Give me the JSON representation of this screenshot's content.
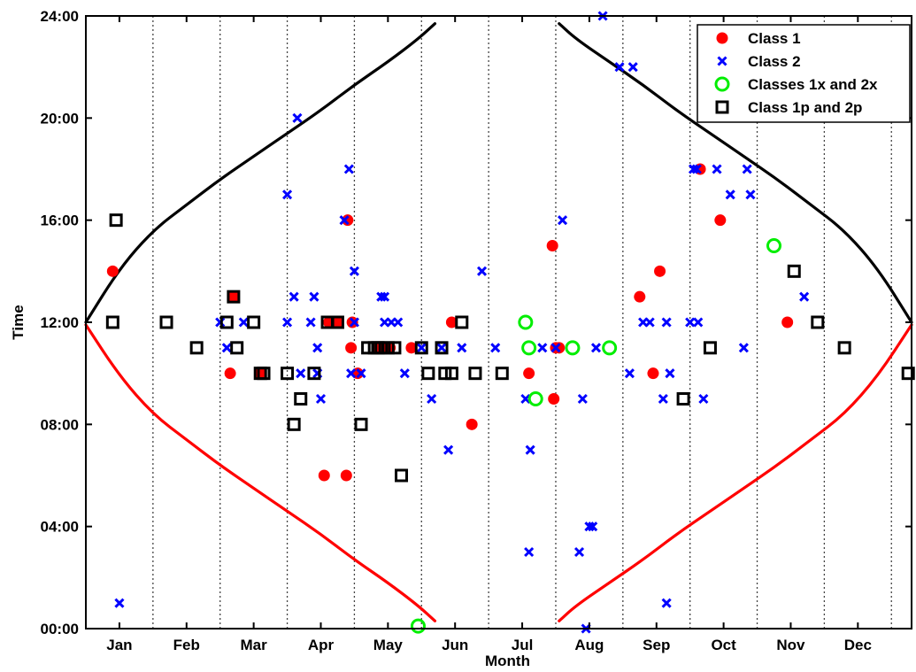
{
  "chart_data": {
    "type": "scatter",
    "xlabel": "Month",
    "ylabel": "Time",
    "xlim": [
      0,
      12.3
    ],
    "ylim": [
      0,
      24
    ],
    "month_ticks": [
      {
        "label": "Jan",
        "x": 0.5
      },
      {
        "label": "Feb",
        "x": 1.5
      },
      {
        "label": "Mar",
        "x": 2.5
      },
      {
        "label": "Apr",
        "x": 3.5
      },
      {
        "label": "May",
        "x": 4.5
      },
      {
        "label": "Jun",
        "x": 5.5
      },
      {
        "label": "Jul",
        "x": 6.5
      },
      {
        "label": "Aug",
        "x": 7.5
      },
      {
        "label": "Sep",
        "x": 8.5
      },
      {
        "label": "Oct",
        "x": 9.5
      },
      {
        "label": "Nov",
        "x": 10.5
      },
      {
        "label": "Dec",
        "x": 11.5
      }
    ],
    "y_ticks": [
      {
        "label": "00:00",
        "y": 0
      },
      {
        "label": "04:00",
        "y": 4
      },
      {
        "label": "08:00",
        "y": 8
      },
      {
        "label": "12:00",
        "y": 12
      },
      {
        "label": "16:00",
        "y": 16
      },
      {
        "label": "20:00",
        "y": 20
      },
      {
        "label": "24:00",
        "y": 24
      }
    ],
    "month_boundaries": [
      1,
      2,
      3,
      4,
      5,
      6,
      7,
      8,
      9,
      10,
      11,
      12
    ],
    "boundary_style": "dotted",
    "legend_position": "top-right",
    "series": [
      {
        "name": "Class 1",
        "marker": "dot",
        "color": "#ff0000",
        "points": [
          [
            0.4,
            14
          ],
          [
            2.2,
            13
          ],
          [
            2.15,
            10
          ],
          [
            2.6,
            10
          ],
          [
            3.55,
            6
          ],
          [
            3.62,
            12
          ],
          [
            3.75,
            12
          ],
          [
            4.05,
            10
          ],
          [
            3.9,
            16
          ],
          [
            3.95,
            11
          ],
          [
            3.97,
            12
          ],
          [
            3.88,
            6
          ],
          [
            4.35,
            11
          ],
          [
            4.42,
            11
          ],
          [
            4.53,
            11
          ],
          [
            4.85,
            11
          ],
          [
            5.45,
            12
          ],
          [
            5.75,
            8
          ],
          [
            6.6,
            10
          ],
          [
            6.95,
            15
          ],
          [
            7.05,
            11
          ],
          [
            6.97,
            9
          ],
          [
            7.0,
            11
          ],
          [
            8.25,
            13
          ],
          [
            8.45,
            10
          ],
          [
            8.55,
            14
          ],
          [
            9.15,
            18
          ],
          [
            9.45,
            16
          ],
          [
            10.45,
            12
          ]
        ]
      },
      {
        "name": "Class 2",
        "marker": "x",
        "color": "#0000ff",
        "points": [
          [
            0.5,
            1
          ],
          [
            2.0,
            12
          ],
          [
            2.1,
            11
          ],
          [
            2.35,
            12
          ],
          [
            3.0,
            17
          ],
          [
            3.1,
            13
          ],
          [
            3.0,
            12
          ],
          [
            3.15,
            20
          ],
          [
            3.2,
            10
          ],
          [
            3.4,
            13
          ],
          [
            3.35,
            12
          ],
          [
            3.5,
            9
          ],
          [
            3.45,
            11
          ],
          [
            3.45,
            10
          ],
          [
            3.85,
            16
          ],
          [
            3.92,
            18
          ],
          [
            4.0,
            14
          ],
          [
            4.0,
            12
          ],
          [
            3.95,
            10
          ],
          [
            4.1,
            10
          ],
          [
            4.4,
            13
          ],
          [
            4.45,
            13
          ],
          [
            4.45,
            12
          ],
          [
            4.55,
            12
          ],
          [
            4.65,
            12
          ],
          [
            4.75,
            10
          ],
          [
            5.0,
            11
          ],
          [
            5.15,
            9
          ],
          [
            5.3,
            11
          ],
          [
            5.4,
            7
          ],
          [
            5.6,
            11
          ],
          [
            5.9,
            14
          ],
          [
            6.1,
            11
          ],
          [
            6.55,
            9
          ],
          [
            6.6,
            3
          ],
          [
            6.62,
            7
          ],
          [
            6.8,
            11
          ],
          [
            7.0,
            11
          ],
          [
            7.1,
            16
          ],
          [
            7.4,
            9
          ],
          [
            7.35,
            3
          ],
          [
            7.45,
            0
          ],
          [
            7.5,
            4
          ],
          [
            7.55,
            4
          ],
          [
            7.6,
            11
          ],
          [
            7.7,
            24
          ],
          [
            7.95,
            22
          ],
          [
            8.15,
            22
          ],
          [
            8.1,
            10
          ],
          [
            8.3,
            12
          ],
          [
            8.4,
            12
          ],
          [
            8.6,
            9
          ],
          [
            8.65,
            12
          ],
          [
            8.65,
            1
          ],
          [
            8.7,
            10
          ],
          [
            9.0,
            12
          ],
          [
            9.05,
            18
          ],
          [
            9.1,
            18
          ],
          [
            9.12,
            12
          ],
          [
            9.2,
            9
          ],
          [
            9.4,
            18
          ],
          [
            9.6,
            17
          ],
          [
            9.8,
            11
          ],
          [
            9.85,
            18
          ],
          [
            9.9,
            17
          ],
          [
            10.7,
            13
          ]
        ]
      },
      {
        "name": "Classes 1x and 2x",
        "marker": "ring",
        "color": "#00ee00",
        "points": [
          [
            4.95,
            0.1
          ],
          [
            6.55,
            12
          ],
          [
            6.6,
            11
          ],
          [
            6.7,
            9
          ],
          [
            7.25,
            11
          ],
          [
            7.8,
            11
          ],
          [
            10.25,
            15
          ]
        ]
      },
      {
        "name": "Class 1p and 2p",
        "marker": "square",
        "color": "#000000",
        "points": [
          [
            0.45,
            16
          ],
          [
            0.4,
            12
          ],
          [
            1.2,
            12
          ],
          [
            1.65,
            11
          ],
          [
            2.1,
            12
          ],
          [
            2.2,
            13
          ],
          [
            2.25,
            11
          ],
          [
            2.5,
            12
          ],
          [
            2.6,
            10
          ],
          [
            2.65,
            10
          ],
          [
            3.0,
            10
          ],
          [
            3.1,
            8
          ],
          [
            3.2,
            9
          ],
          [
            3.4,
            10
          ],
          [
            3.6,
            12
          ],
          [
            3.75,
            12
          ],
          [
            4.1,
            8
          ],
          [
            4.2,
            11
          ],
          [
            4.3,
            11
          ],
          [
            4.35,
            11
          ],
          [
            4.4,
            11
          ],
          [
            4.5,
            11
          ],
          [
            4.6,
            11
          ],
          [
            4.7,
            6
          ],
          [
            5.0,
            11
          ],
          [
            5.1,
            10
          ],
          [
            5.3,
            11
          ],
          [
            5.35,
            10
          ],
          [
            5.45,
            10
          ],
          [
            5.6,
            12
          ],
          [
            5.8,
            10
          ],
          [
            6.2,
            10
          ],
          [
            8.9,
            9
          ],
          [
            9.3,
            11
          ],
          [
            10.55,
            14
          ],
          [
            10.9,
            12
          ],
          [
            11.3,
            11
          ],
          [
            12.25,
            10
          ]
        ]
      }
    ],
    "curves": [
      {
        "name": "upper-left-black",
        "color": "#000000",
        "points": [
          [
            0.0,
            12.0
          ],
          [
            0.5,
            14.1
          ],
          [
            1.0,
            15.6
          ],
          [
            1.5,
            16.6
          ],
          [
            2.0,
            17.6
          ],
          [
            2.5,
            18.5
          ],
          [
            3.0,
            19.4
          ],
          [
            3.5,
            20.3
          ],
          [
            4.0,
            21.3
          ],
          [
            4.5,
            22.2
          ],
          [
            4.95,
            23.1
          ],
          [
            5.2,
            23.7
          ]
        ]
      },
      {
        "name": "upper-right-black",
        "color": "#000000",
        "points": [
          [
            7.05,
            23.7
          ],
          [
            7.3,
            23.1
          ],
          [
            7.8,
            22.2
          ],
          [
            8.3,
            21.3
          ],
          [
            8.8,
            20.3
          ],
          [
            9.3,
            19.4
          ],
          [
            9.8,
            18.5
          ],
          [
            10.3,
            17.6
          ],
          [
            10.8,
            16.6
          ],
          [
            11.3,
            15.6
          ],
          [
            11.8,
            14.1
          ],
          [
            12.3,
            12.0
          ]
        ]
      },
      {
        "name": "lower-left-red",
        "color": "#ff0000",
        "points": [
          [
            0.0,
            11.9
          ],
          [
            0.5,
            9.9
          ],
          [
            1.0,
            8.4
          ],
          [
            1.5,
            7.4
          ],
          [
            2.0,
            6.4
          ],
          [
            2.5,
            5.5
          ],
          [
            3.0,
            4.6
          ],
          [
            3.5,
            3.7
          ],
          [
            4.0,
            2.7
          ],
          [
            4.5,
            1.8
          ],
          [
            4.95,
            0.9
          ],
          [
            5.2,
            0.3
          ]
        ]
      },
      {
        "name": "lower-right-red",
        "color": "#ff0000",
        "points": [
          [
            7.05,
            0.3
          ],
          [
            7.3,
            0.9
          ],
          [
            7.8,
            1.8
          ],
          [
            8.3,
            2.7
          ],
          [
            8.8,
            3.7
          ],
          [
            9.3,
            4.6
          ],
          [
            9.8,
            5.5
          ],
          [
            10.3,
            6.4
          ],
          [
            10.8,
            7.4
          ],
          [
            11.3,
            8.4
          ],
          [
            11.8,
            9.9
          ],
          [
            12.3,
            11.9
          ]
        ]
      }
    ]
  }
}
